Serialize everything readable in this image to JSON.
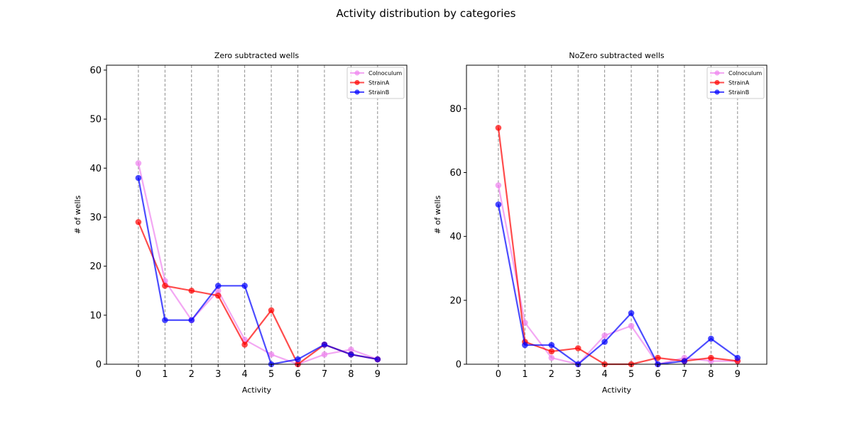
{
  "figure": {
    "title": "Activity distribution by categories"
  },
  "chart_data": [
    {
      "type": "line",
      "title": "Zero subtracted wells",
      "xlabel": "Activity",
      "ylabel": "# of wells",
      "x": [
        0,
        1,
        2,
        3,
        4,
        5,
        6,
        7,
        8,
        9
      ],
      "xlim": [
        -1.2,
        10.1
      ],
      "ylim": [
        0,
        61
      ],
      "yticks": [
        0,
        10,
        20,
        30,
        40,
        50,
        60
      ],
      "grid": "vertical-dashed",
      "legend_position": "top-right",
      "series": [
        {
          "name": "Colnoculum",
          "color": "#ee82ee",
          "values": [
            41,
            17,
            9,
            15,
            5,
            2,
            0,
            2,
            3,
            1
          ]
        },
        {
          "name": "StrainA",
          "color": "#ff0000",
          "values": [
            29,
            16,
            15,
            14,
            4,
            11,
            0,
            4,
            2,
            1
          ]
        },
        {
          "name": "StrainB",
          "color": "#0000ff",
          "values": [
            38,
            9,
            9,
            16,
            16,
            0,
            1,
            4,
            2,
            1
          ]
        }
      ]
    },
    {
      "type": "line",
      "title": "NoZero subtracted wells",
      "xlabel": "Activity",
      "ylabel": "# of wells",
      "x": [
        0,
        1,
        2,
        3,
        4,
        5,
        6,
        7,
        8,
        9
      ],
      "xlim": [
        -1.2,
        10.1
      ],
      "ylim": [
        0,
        93.6
      ],
      "yticks": [
        0,
        20,
        40,
        60,
        80
      ],
      "grid": "vertical-dashed",
      "legend_position": "top-right",
      "series": [
        {
          "name": "Colnoculum",
          "color": "#ee82ee",
          "values": [
            56,
            13,
            2,
            0,
            9,
            12,
            0,
            2,
            1,
            1
          ]
        },
        {
          "name": "StrainA",
          "color": "#ff0000",
          "values": [
            74,
            7,
            4,
            5,
            0,
            0,
            2,
            1,
            2,
            1
          ]
        },
        {
          "name": "StrainB",
          "color": "#0000ff",
          "values": [
            50,
            6,
            6,
            0,
            7,
            16,
            0,
            1,
            8,
            2
          ]
        }
      ]
    }
  ]
}
